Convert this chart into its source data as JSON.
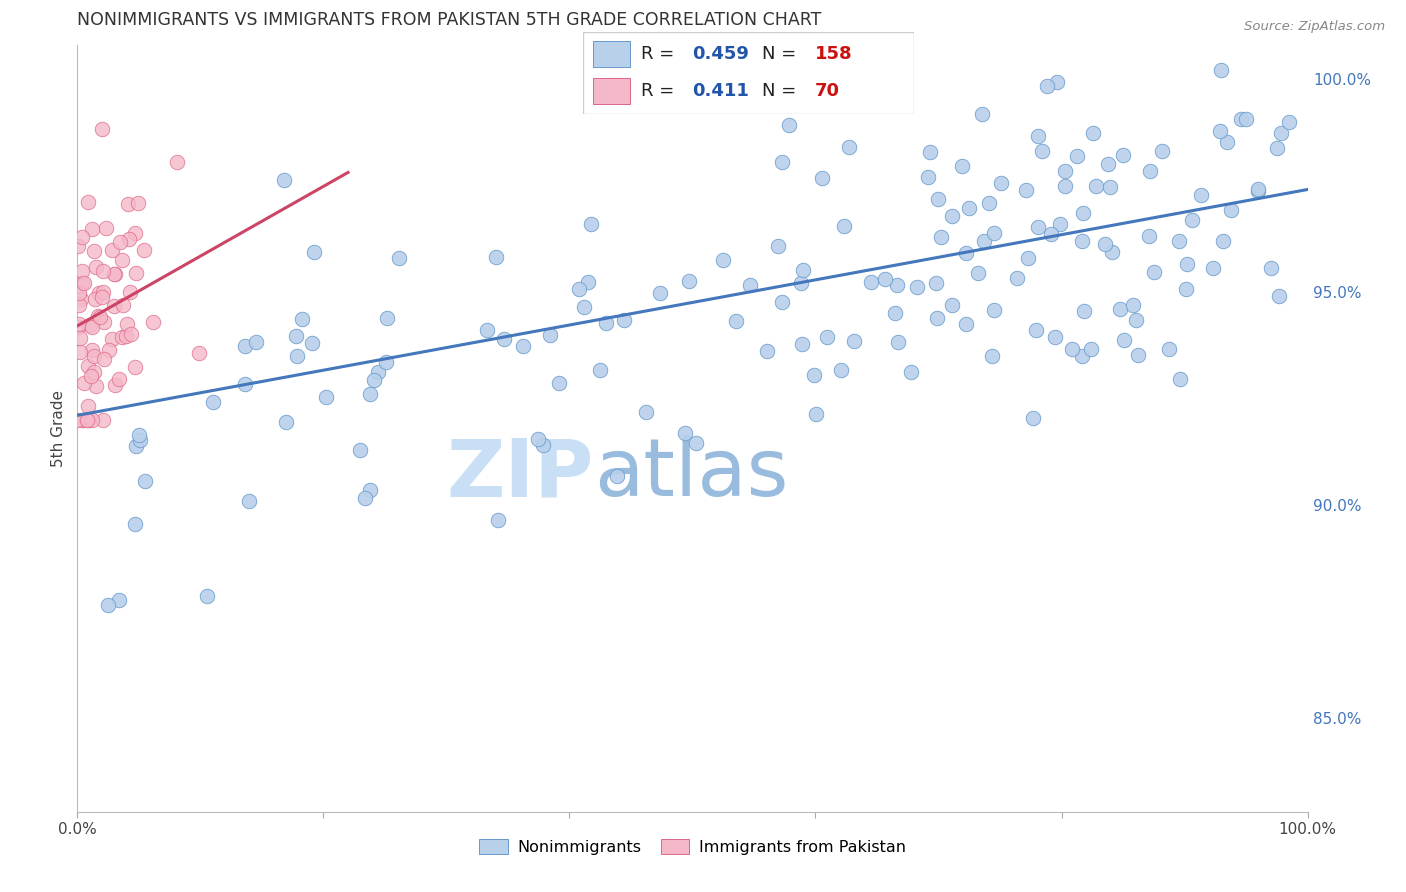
{
  "title": "NONIMMIGRANTS VS IMMIGRANTS FROM PAKISTAN 5TH GRADE CORRELATION CHART",
  "source": "Source: ZipAtlas.com",
  "ylabel_axis": "5th Grade",
  "blue_R": 0.459,
  "blue_N": 158,
  "pink_R": 0.411,
  "pink_N": 70,
  "blue_color": "#b8d0ea",
  "pink_color": "#f5b8c8",
  "blue_edge_color": "#6699cc",
  "pink_edge_color": "#dd6688",
  "blue_line_color": "#4477bb",
  "pink_line_color": "#cc4466",
  "title_color": "#333333",
  "watermark_zip_color": "#c8dff5",
  "watermark_atlas_color": "#99bbdd",
  "right_axis_color": "#4477bb",
  "legend_R_color": "#2255aa",
  "legend_N_color": "#cc1111",
  "background_color": "#ffffff",
  "grid_color": "#dddddd",
  "xmin": 0.0,
  "xmax": 1.0,
  "ymin": 0.828,
  "ymax": 1.008,
  "right_yticks": [
    0.85,
    0.9,
    0.95,
    1.0
  ],
  "right_yticklabels": [
    "85.0%",
    "90.0%",
    "95.0%",
    "100.0%"
  ],
  "blue_line_x0": 0.0,
  "blue_line_x1": 1.0,
  "blue_line_y0": 0.921,
  "blue_line_y1": 0.974,
  "pink_line_x0": 0.0,
  "pink_line_x1": 0.22,
  "pink_line_y0": 0.942,
  "pink_line_y1": 0.978
}
